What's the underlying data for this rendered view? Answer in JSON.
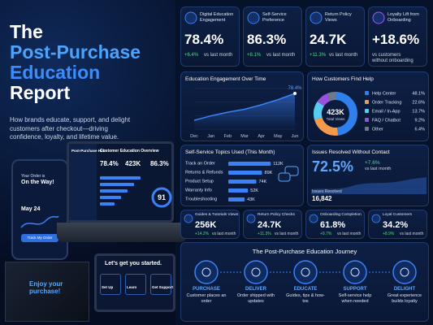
{
  "header": {
    "title_1": "The",
    "title_2": "Post-Purchase",
    "title_3": "Education",
    "title_4": "Report",
    "subtitle": "How brands educate, support, and delight customers after checkout—driving confidence, loyalty, and lifetime value."
  },
  "mockups": {
    "phone_heading": "Your Order is",
    "phone_title": "On the Way!",
    "phone_date": "May 24",
    "phone_button": "Track My Order",
    "laptop_app": "Post-Purchase Hub",
    "laptop_heading": "Customer Education Overview",
    "laptop_stats": [
      "78.4%",
      "423K",
      "86.3%"
    ],
    "laptop_score": "91",
    "box_text": "Enjoy your purchase!",
    "tablet_title": "Let's get you started.",
    "tablet_steps": [
      "Set Up",
      "Learn",
      "Get Support"
    ]
  },
  "kpis": [
    {
      "label": "Digital Education Engagement",
      "value": "78.4%",
      "change": "+6.4%",
      "note": "vs last month"
    },
    {
      "label": "Self-Service Preference",
      "value": "86.3%",
      "change": "+8.1%",
      "note": "vs last month"
    },
    {
      "label": "Return Policy Views",
      "value": "24.7K",
      "change": "+11.3%",
      "note": "vs last month"
    },
    {
      "label": "Loyalty Lift from Onboarding",
      "value": "+18.6%",
      "change": "vs customers",
      "note": "without onboarding"
    }
  ],
  "engagement": {
    "type": "line",
    "title": "Education Engagement Over Time",
    "categories": [
      "Dec",
      "Jan",
      "Feb",
      "Mar",
      "Apr",
      "May",
      "Jun"
    ],
    "values": [
      42,
      48,
      53,
      57,
      63,
      70,
      78.4
    ],
    "peak_label": "78.4%",
    "ylim": [
      30,
      85
    ],
    "color": "#3b82f6"
  },
  "help": {
    "type": "pie",
    "title": "How Customers Find Help",
    "total": "423K",
    "total_label": "Total Views",
    "categories": [
      "Help Center",
      "Order Tracking",
      "Email / In-App",
      "FAQ / Chatbot",
      "Other"
    ],
    "values": [
      48.1,
      22.6,
      13.7,
      9.2,
      6.4
    ],
    "value_labels": [
      "48.1%",
      "22.6%",
      "13.7%",
      "9.2%",
      "6.4%"
    ],
    "colors": [
      "#2f80ed",
      "#f2994a",
      "#56ccf2",
      "#9b51e0",
      "#6c7a89"
    ]
  },
  "topics": {
    "type": "bar",
    "title": "Self-Service Topics Used (This Month)",
    "categories": [
      "Track an Order",
      "Returns & Refunds",
      "Product Setup",
      "Warranty Info",
      "Troubleshooting"
    ],
    "values": [
      112000,
      89000,
      74000,
      52000,
      43000
    ],
    "value_labels": [
      "112K",
      "89K",
      "74K",
      "52K",
      "43K"
    ],
    "xlim": [
      0,
      120000
    ],
    "color": "#3b82f6"
  },
  "issues": {
    "title": "Issues Resolved Without Contact",
    "value": "72.5%",
    "change": "+7.6%",
    "note": "vs last month",
    "count_label": "Issues Resolved",
    "count": "16,842"
  },
  "mini_kpis": [
    {
      "label": "Guides & Tutorials Views",
      "value": "256K",
      "change": "+14.2%",
      "note": "vs last month"
    },
    {
      "label": "Return Policy Checks",
      "value": "24.7K",
      "change": "+11.3%",
      "note": "vs last month"
    },
    {
      "label": "Onboarding Completion",
      "value": "61.8%",
      "change": "+9.7%",
      "note": "vs last month"
    },
    {
      "label": "Loyal Customers",
      "value": "34.2%",
      "change": "+8.9%",
      "note": "vs last month"
    }
  ],
  "journey": {
    "title": "The Post-Purchase Education Journey",
    "steps": [
      {
        "name": "PURCHASE",
        "desc": "Customer places an order"
      },
      {
        "name": "DELIVER",
        "desc": "Order shipped with updates"
      },
      {
        "name": "EDUCATE",
        "desc": "Guides, tips & how-tos"
      },
      {
        "name": "SUPPORT",
        "desc": "Self-service help when needed"
      },
      {
        "name": "DELIGHT",
        "desc": "Great experience builds loyalty"
      }
    ]
  }
}
